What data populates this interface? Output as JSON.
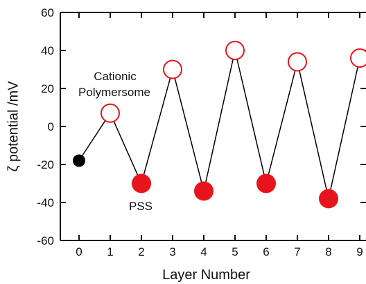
{
  "chart_data": {
    "type": "scatter",
    "title": "",
    "xlabel": "Layer Number",
    "ylabel": "ζ potential /mV",
    "xlim": [
      -0.6,
      9.2
    ],
    "ylim": [
      -60,
      60
    ],
    "xticks": [
      0,
      1,
      2,
      3,
      4,
      5,
      6,
      7,
      8,
      9
    ],
    "yticks": [
      -60,
      -40,
      -20,
      0,
      20,
      40,
      60
    ],
    "grid": false,
    "legend": "none",
    "points": [
      {
        "x": 0,
        "y": -18,
        "style": "filled-black"
      },
      {
        "x": 1,
        "y": 7,
        "style": "open-red"
      },
      {
        "x": 2,
        "y": -30,
        "style": "filled-red"
      },
      {
        "x": 3,
        "y": 30,
        "style": "open-red"
      },
      {
        "x": 4,
        "y": -34,
        "style": "filled-red"
      },
      {
        "x": 5,
        "y": 40,
        "style": "open-red"
      },
      {
        "x": 6,
        "y": -30,
        "style": "filled-red"
      },
      {
        "x": 7,
        "y": 34,
        "style": "open-red"
      },
      {
        "x": 8,
        "y": -38,
        "style": "filled-red"
      },
      {
        "x": 9,
        "y": 36,
        "style": "open-red"
      }
    ],
    "annotations": [
      {
        "text_lines": [
          "Cationic",
          "Polymersome"
        ]
      },
      {
        "text_lines": [
          "PSS"
        ]
      }
    ],
    "colors": {
      "open_marker": "#e8141c",
      "filled_marker": "#e8141c",
      "start_marker": "#000000",
      "line": "#000000"
    }
  }
}
